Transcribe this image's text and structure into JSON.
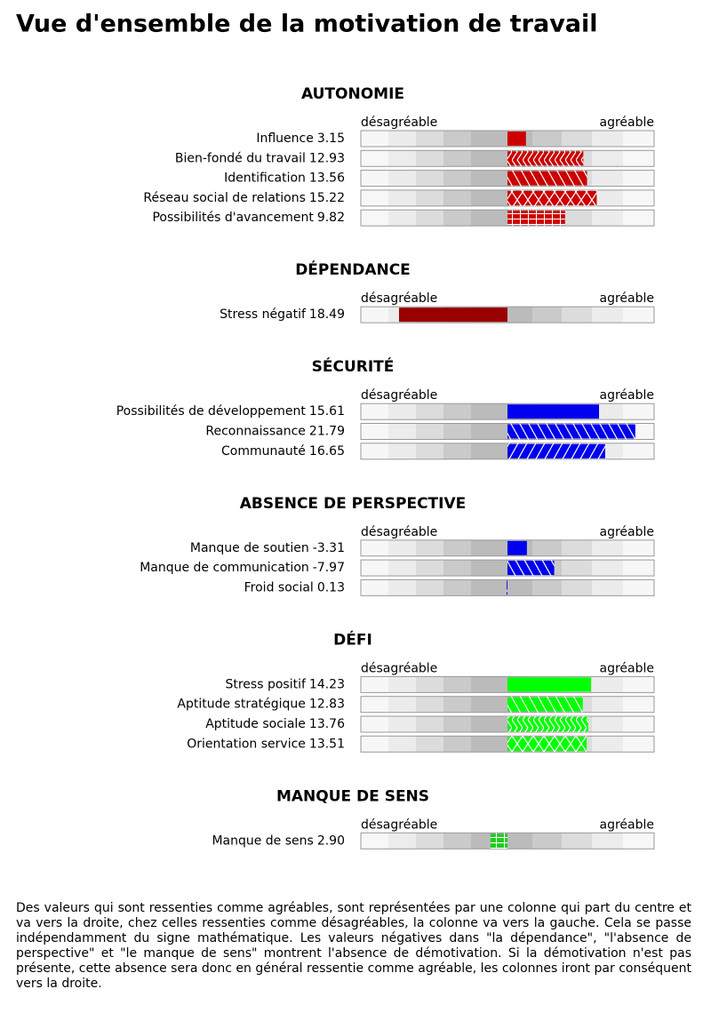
{
  "title": "Vue d'ensemble de la motivation de travail",
  "scale": {
    "xlim": [
      -25,
      25
    ],
    "left_label": "désagréable",
    "right_label": "agréable"
  },
  "sections": [
    {
      "heading": "AUTONOMIE",
      "color": "#cc0000",
      "inverted": false,
      "labels": [
        "Influence",
        "Bien-fondé du travail",
        "Identification",
        "Réseau social de relations",
        "Possibilités d'avancement"
      ],
      "values": [
        3.15,
        12.93,
        13.56,
        15.22,
        9.82
      ],
      "value_labels": [
        "3.15",
        "12.93",
        "13.56",
        "15.22",
        "9.82"
      ],
      "patterns": [
        "solid",
        "chevron",
        "backslash",
        "cross",
        "grid"
      ]
    },
    {
      "heading": "DÉPENDANCE",
      "color": "#990000",
      "inverted": true,
      "labels": [
        "Stress négatif"
      ],
      "values": [
        18.49
      ],
      "value_labels": [
        "18.49"
      ],
      "patterns": [
        "solid"
      ]
    },
    {
      "heading": "SÉCURITÉ",
      "color": "#0000ee",
      "inverted": false,
      "labels": [
        "Possibilités de développement",
        "Reconnaissance",
        "Communauté"
      ],
      "values": [
        15.61,
        21.79,
        16.65
      ],
      "value_labels": [
        "15.61",
        "21.79",
        "16.65"
      ],
      "patterns": [
        "solid",
        "backslash",
        "slash"
      ]
    },
    {
      "heading": "ABSENCE  DE  PERSPECTIVE",
      "color": "#0000ee",
      "inverted": true,
      "labels": [
        "Manque de soutien",
        "Manque de communication",
        "Froid social"
      ],
      "values": [
        -3.31,
        -7.97,
        0.13
      ],
      "value_labels": [
        "-3.31",
        "-7.97",
        "0.13"
      ],
      "patterns": [
        "solid",
        "backslash",
        "slash"
      ]
    },
    {
      "heading": "DÉFI",
      "color": "#00ff00",
      "inverted": false,
      "labels": [
        "Stress positif",
        "Aptitude stratégique",
        "Aptitude sociale",
        "Orientation service"
      ],
      "values": [
        14.23,
        12.83,
        13.76,
        13.51
      ],
      "value_labels": [
        "14.23",
        "12.83",
        "13.76",
        "13.51"
      ],
      "patterns": [
        "solid",
        "backslash",
        "chevron",
        "cross"
      ]
    },
    {
      "heading": "MANQUE  DE  SENS",
      "color": "#22cc22",
      "inverted": true,
      "labels": [
        "Manque de sens"
      ],
      "values": [
        2.9
      ],
      "value_labels": [
        "2.90"
      ],
      "patterns": [
        "grid"
      ]
    }
  ],
  "note": "Des valeurs qui sont ressenties comme agréables, sont représentées par une colonne qui part du centre et va vers la droite, chez celles ressenties comme désagréables, la colonne va vers la gauche. Cela se passe indépendamment du signe mathématique. Les valeurs négatives dans \"la dépendance\", \"l'absence de perspective\" et \"le manque de sens\" montrent l'absence de démotivation. Si la démotivation n'est pas présente, cette absence sera donc en général ressentie comme agréable, les colonnes iront par conséquent vers la droite."
}
